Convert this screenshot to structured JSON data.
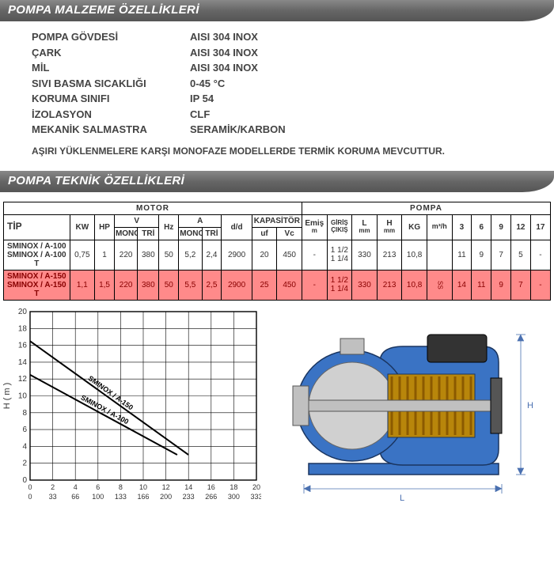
{
  "section1": {
    "title": "POMPA MALZEME ÖZELLİKLERİ"
  },
  "materials": [
    {
      "label": "POMPA GÖVDESİ",
      "value": "AISI 304 INOX"
    },
    {
      "label": "ÇARK",
      "value": "AISI 304 INOX"
    },
    {
      "label": "MİL",
      "value": "AISI 304 INOX"
    },
    {
      "label": "SIVI BASMA SICAKLIĞI",
      "value": "0-45 °C"
    },
    {
      "label": "KORUMA SINIFI",
      "value": "IP 54"
    },
    {
      "label": "İZOLASYON",
      "value": "CLF"
    },
    {
      "label": "MEKANİK SALMASTRA",
      "value": "SERAMİK/KARBON"
    }
  ],
  "warning": "AŞIRI YÜKLENMELERE KARŞI MONOFAZE MODELLERDE TERMİK KORUMA MEVCUTTUR.",
  "section2": {
    "title": "POMPA TEKNİK ÖZELLİKLERİ"
  },
  "table": {
    "group_motor": "MOTOR",
    "group_pompa": "POMPA",
    "cols": {
      "tip": "TİP",
      "kw": "KW",
      "hp": "HP",
      "v": "V",
      "v_mono": "MONO",
      "v_tri": "TRİ",
      "hz": "Hz",
      "a": "A",
      "a_mono": "MONO",
      "a_tri": "TRİ",
      "dd": "d/d",
      "kap": "KAPASİTÖR",
      "kap_uf": "uf",
      "kap_vc": "Vc",
      "emis": "Emiş",
      "emis_u": "m",
      "giris": "GİRİŞ ÇIKIŞ",
      "L": "L",
      "L_u": "mm",
      "H": "H",
      "H_u": "mm",
      "kg": "KG",
      "m3h": "m³/h",
      "c3": "3",
      "c6": "6",
      "c9": "9",
      "c12": "12",
      "c17": "17"
    },
    "rows": [
      {
        "tip": [
          "SMINOX / A-100",
          "SMINOX / A-100 T"
        ],
        "kw": "0,75",
        "hp": "1",
        "vmono": "220",
        "vtri": "380",
        "hz": "50",
        "amono": "5,2",
        "atri": "2,4",
        "dd": "2900",
        "uf": "20",
        "vc": "450",
        "emis": "-",
        "giris": [
          "1 1/2",
          "1 1/4"
        ],
        "L": "330",
        "H": "213",
        "kg": "10,8",
        "m3h": "",
        "c3": "11",
        "c6": "9",
        "c9": "7",
        "c12": "5",
        "c17": "-",
        "highlight": false
      },
      {
        "tip": [
          "SMINOX / A-150",
          "SMINOX / A-150 T"
        ],
        "kw": "1,1",
        "hp": "1,5",
        "vmono": "220",
        "vtri": "380",
        "hz": "50",
        "amono": "5,5",
        "atri": "2,5",
        "dd": "2900",
        "uf": "25",
        "vc": "450",
        "emis": "-",
        "giris": [
          "1 1/2",
          "1 1/4"
        ],
        "L": "330",
        "H": "213",
        "kg": "10,8",
        "m3h": "SS",
        "c3": "14",
        "c6": "11",
        "c9": "9",
        "c12": "7",
        "c17": "-",
        "highlight": true
      }
    ]
  },
  "chart": {
    "type": "line",
    "ylabel": "H ( m )",
    "ylim": [
      0,
      20
    ],
    "ytick_step": 2,
    "x_top_ticks": [
      0,
      2,
      4,
      6,
      8,
      10,
      12,
      14,
      16,
      18,
      20
    ],
    "x_bot_ticks": [
      0,
      33,
      66,
      100,
      133,
      166,
      200,
      233,
      266,
      300,
      333
    ],
    "xlim_top": [
      0,
      20
    ],
    "xlim_bot": [
      0,
      333
    ],
    "grid_color": "#000000",
    "grid_width": 0.6,
    "background_color": "#ffffff",
    "series": [
      {
        "label": "SMINOX / A-150",
        "points": [
          [
            0,
            16.5
          ],
          [
            14,
            3
          ]
        ],
        "color": "#000000",
        "width": 2
      },
      {
        "label": "SMINOX / A-100",
        "points": [
          [
            0,
            12.5
          ],
          [
            13,
            3
          ]
        ],
        "color": "#000000",
        "width": 2
      }
    ],
    "label_fontsize": 9
  },
  "pump_diagram": {
    "dim_L": "L",
    "dim_H": "H",
    "body_color": "#3a73c4",
    "outline_color": "#1a3560",
    "metal_color": "#c0c0c0",
    "dark_color": "#333333",
    "dim_color": "#4a70b0"
  }
}
